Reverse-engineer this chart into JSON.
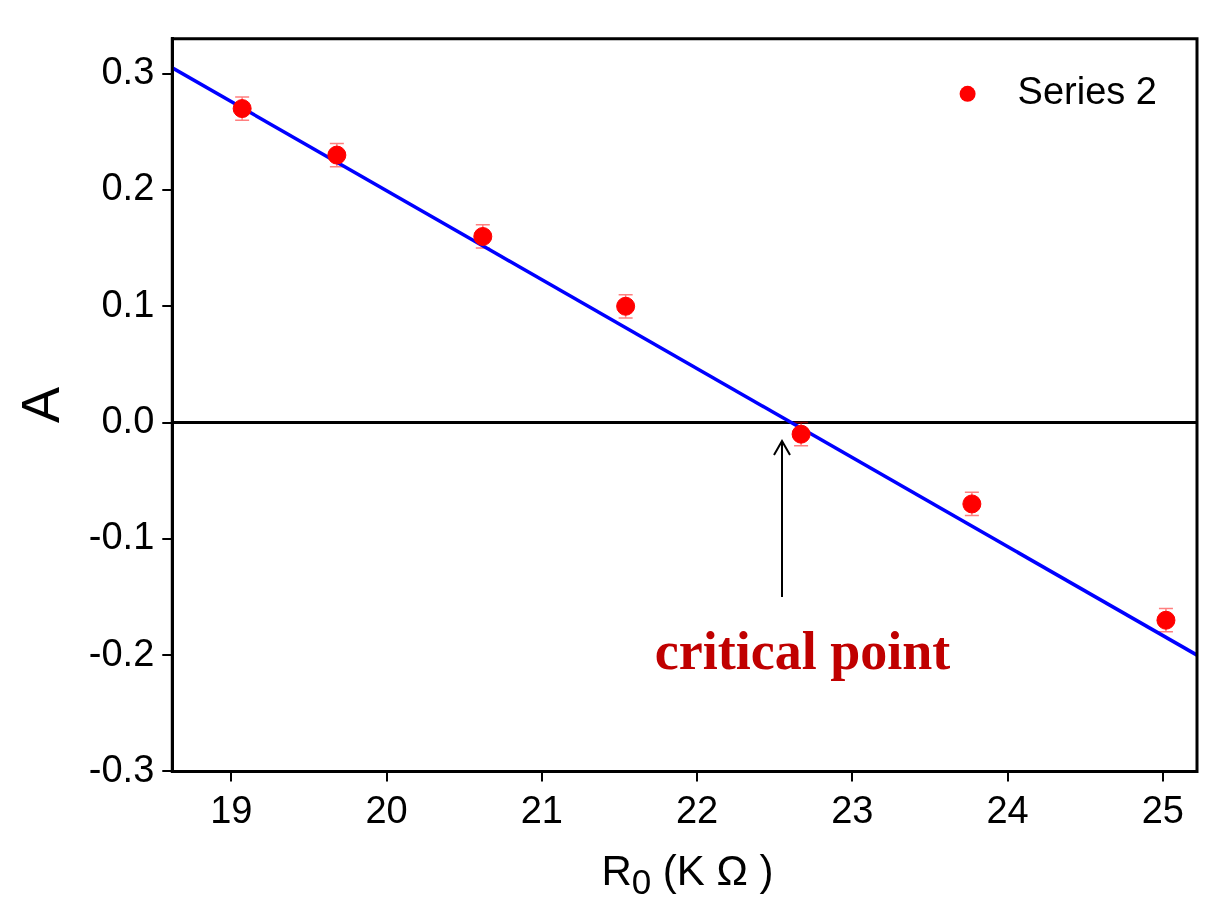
{
  "chart_data": {
    "type": "scatter",
    "xlabel": "R$_{0}$ (K Ω )",
    "ylabel": "A",
    "xlim": [
      18.62,
      25.22
    ],
    "xticks": [
      19,
      20,
      21,
      22,
      23,
      24,
      25
    ],
    "ylim": [
      -0.3,
      0.33
    ],
    "yticks": [
      -0.3,
      -0.2,
      -0.1,
      {
        "value": 0,
        "label": "0.0"
      },
      0.1,
      0.2,
      0.3
    ],
    "series": [
      {
        "name": "Series 2",
        "type": "scatter",
        "color": "#ff0000",
        "marker": "circle",
        "x": [
          19.07,
          19.68,
          20.62,
          21.54,
          22.67,
          23.77,
          25.02
        ],
        "values": [
          0.27,
          0.23,
          0.16,
          0.1,
          -0.01,
          -0.07,
          -0.17
        ],
        "errors": [
          0.01,
          0.01,
          0.01,
          0.01,
          0.01,
          0.01,
          0.01
        ]
      },
      {
        "type": "line",
        "color": "#0000ff",
        "x": [
          18.62,
          25.22
        ],
        "values": [
          0.305,
          -0.2
        ]
      }
    ],
    "ref_lines": [
      {
        "axis": "y",
        "value": 0,
        "color": "#000000"
      }
    ],
    "annotations": [
      "critical point"
    ],
    "grid": false,
    "legend": "top right"
  }
}
